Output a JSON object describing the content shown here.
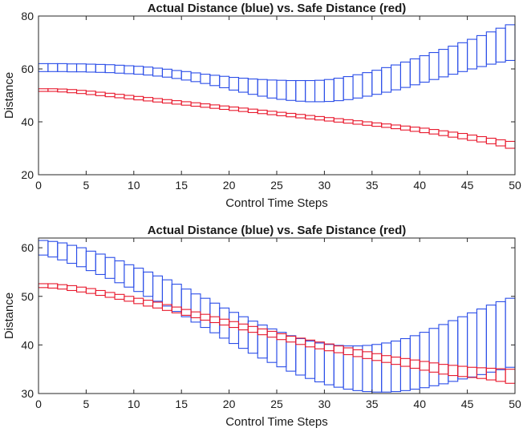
{
  "chart_data": [
    {
      "type": "interval",
      "title": "Actual Distance (blue) vs. Safe Distance (red)",
      "xlabel": "Control Time Steps",
      "ylabel": "Distance",
      "xlim": [
        0,
        50
      ],
      "ylim": [
        20,
        80
      ],
      "xticks": [
        0,
        5,
        10,
        15,
        20,
        25,
        30,
        35,
        40,
        45,
        50
      ],
      "yticks": [
        20,
        40,
        60,
        80
      ],
      "grid": false,
      "x": [
        0,
        1,
        2,
        3,
        4,
        5,
        6,
        7,
        8,
        9,
        10,
        11,
        12,
        13,
        14,
        15,
        16,
        17,
        18,
        19,
        20,
        21,
        22,
        23,
        24,
        25,
        26,
        27,
        28,
        29,
        30,
        31,
        32,
        33,
        34,
        35,
        36,
        37,
        38,
        39,
        40,
        41,
        42,
        43,
        44,
        45,
        46,
        47,
        48,
        49,
        50
      ],
      "series": [
        {
          "name": "Actual Distance",
          "color": "#2a4de8",
          "lower": [
            59.0,
            59.0,
            59.0,
            58.9,
            58.9,
            58.8,
            58.7,
            58.6,
            58.4,
            58.2,
            58.0,
            57.7,
            57.3,
            56.9,
            56.4,
            55.8,
            55.2,
            54.5,
            53.7,
            52.9,
            52.0,
            51.2,
            50.4,
            49.7,
            49.0,
            48.5,
            48.1,
            47.8,
            47.6,
            47.6,
            47.7,
            48.0,
            48.4,
            49.0,
            49.7,
            50.4,
            51.2,
            52.1,
            53.0,
            54.0,
            55.0,
            56.0,
            57.0,
            58.0,
            59.0,
            60.0,
            60.9,
            61.8,
            62.6,
            63.2,
            63.5
          ],
          "upper": [
            62.0,
            62.0,
            62.0,
            61.9,
            61.9,
            61.8,
            61.7,
            61.6,
            61.4,
            61.2,
            61.0,
            60.7,
            60.3,
            59.9,
            59.4,
            59.0,
            58.5,
            58.0,
            57.6,
            57.2,
            56.8,
            56.5,
            56.2,
            56.0,
            55.8,
            55.7,
            55.6,
            55.6,
            55.6,
            55.7,
            56.0,
            56.5,
            57.1,
            57.8,
            58.6,
            59.5,
            60.5,
            61.5,
            62.6,
            63.8,
            65.0,
            66.2,
            67.4,
            68.6,
            69.9,
            71.2,
            72.6,
            74.0,
            75.4,
            76.7,
            77.9
          ]
        },
        {
          "name": "Safe Distance",
          "color": "#e8182c",
          "lower": [
            51.5,
            51.5,
            51.3,
            51.0,
            50.7,
            50.3,
            49.9,
            49.5,
            49.1,
            48.7,
            48.3,
            47.9,
            47.5,
            47.1,
            46.7,
            46.3,
            45.9,
            45.5,
            45.1,
            44.7,
            44.3,
            43.9,
            43.5,
            43.1,
            42.7,
            42.3,
            41.9,
            41.5,
            41.1,
            40.7,
            40.3,
            39.9,
            39.5,
            39.1,
            38.7,
            38.3,
            37.9,
            37.4,
            36.9,
            36.4,
            35.9,
            35.4,
            34.8,
            34.2,
            33.6,
            33.0,
            32.4,
            31.7,
            30.9,
            30.0,
            29.0
          ],
          "upper": [
            52.5,
            52.5,
            52.4,
            52.2,
            51.9,
            51.6,
            51.2,
            50.8,
            50.4,
            50.0,
            49.6,
            49.2,
            48.8,
            48.4,
            48.0,
            47.6,
            47.2,
            46.8,
            46.4,
            46.0,
            45.6,
            45.2,
            44.8,
            44.4,
            44.0,
            43.6,
            43.2,
            42.8,
            42.4,
            42.0,
            41.6,
            41.2,
            40.8,
            40.4,
            40.0,
            39.6,
            39.2,
            38.8,
            38.4,
            38.0,
            37.6,
            37.1,
            36.6,
            36.1,
            35.6,
            35.0,
            34.4,
            33.8,
            33.2,
            32.6,
            32.0
          ]
        }
      ]
    },
    {
      "type": "interval",
      "title": "Actual Distance (blue) vs. Safe Distance (red)",
      "xlabel": "Control Time Steps",
      "ylabel": "Distance",
      "xlim": [
        0,
        50
      ],
      "ylim": [
        30,
        62
      ],
      "xticks": [
        0,
        5,
        10,
        15,
        20,
        25,
        30,
        35,
        40,
        45,
        50
      ],
      "yticks": [
        30,
        40,
        50,
        60
      ],
      "grid": false,
      "x": [
        0,
        1,
        2,
        3,
        4,
        5,
        6,
        7,
        8,
        9,
        10,
        11,
        12,
        13,
        14,
        15,
        16,
        17,
        18,
        19,
        20,
        21,
        22,
        23,
        24,
        25,
        26,
        27,
        28,
        29,
        30,
        31,
        32,
        33,
        34,
        35,
        36,
        37,
        38,
        39,
        40,
        41,
        42,
        43,
        44,
        45,
        46,
        47,
        48,
        49,
        50
      ],
      "series": [
        {
          "name": "Actual Distance",
          "color": "#2a4de8",
          "lower": [
            58.5,
            58.1,
            57.5,
            56.8,
            56.1,
            55.3,
            54.5,
            53.7,
            52.8,
            51.9,
            51.0,
            50.0,
            49.0,
            48.0,
            46.9,
            45.8,
            44.7,
            43.6,
            42.5,
            41.4,
            40.3,
            39.3,
            38.3,
            37.3,
            36.4,
            35.5,
            34.6,
            33.8,
            33.1,
            32.4,
            31.8,
            31.3,
            30.9,
            30.6,
            30.4,
            30.3,
            30.3,
            30.4,
            30.6,
            30.9,
            31.2,
            31.6,
            32.0,
            32.5,
            33.0,
            33.4,
            33.9,
            34.4,
            34.9,
            35.4,
            35.9
          ],
          "upper": [
            61.5,
            61.3,
            61.0,
            60.5,
            60.0,
            59.3,
            58.7,
            58.0,
            57.3,
            56.5,
            55.8,
            55.0,
            54.2,
            53.4,
            52.5,
            51.5,
            50.5,
            49.6,
            48.6,
            47.6,
            46.7,
            45.8,
            44.9,
            44.1,
            43.3,
            42.6,
            41.9,
            41.3,
            40.8,
            40.4,
            40.1,
            39.9,
            39.8,
            39.8,
            39.9,
            40.1,
            40.4,
            40.8,
            41.3,
            41.9,
            42.6,
            43.4,
            44.2,
            45.0,
            45.8,
            46.6,
            47.4,
            48.2,
            48.9,
            49.6,
            50.1
          ]
        },
        {
          "name": "Safe Distance",
          "color": "#e8182c",
          "lower": [
            51.8,
            51.7,
            51.5,
            51.2,
            50.9,
            50.6,
            50.2,
            49.8,
            49.4,
            49.0,
            48.5,
            48.0,
            47.6,
            47.1,
            46.6,
            46.1,
            45.6,
            45.1,
            44.6,
            44.1,
            43.6,
            43.1,
            42.6,
            42.1,
            41.6,
            41.1,
            40.6,
            40.1,
            39.6,
            39.2,
            38.8,
            38.4,
            38.0,
            37.6,
            37.2,
            36.8,
            36.4,
            36.0,
            35.6,
            35.2,
            34.8,
            34.4,
            34.0,
            33.7,
            33.5,
            33.3,
            33.1,
            32.8,
            32.5,
            32.1,
            31.7
          ],
          "upper": [
            52.6,
            52.6,
            52.4,
            52.2,
            51.9,
            51.6,
            51.2,
            50.8,
            50.4,
            50.0,
            49.6,
            49.2,
            48.8,
            48.3,
            47.8,
            47.3,
            46.8,
            46.3,
            45.8,
            45.3,
            44.8,
            44.3,
            43.8,
            43.3,
            42.8,
            42.3,
            41.8,
            41.4,
            41.0,
            40.6,
            40.2,
            39.8,
            39.4,
            39.0,
            38.6,
            38.2,
            37.8,
            37.5,
            37.2,
            36.9,
            36.6,
            36.3,
            36.0,
            35.8,
            35.6,
            35.4,
            35.3,
            35.2,
            35.1,
            35.0,
            35.0
          ]
        }
      ]
    }
  ]
}
